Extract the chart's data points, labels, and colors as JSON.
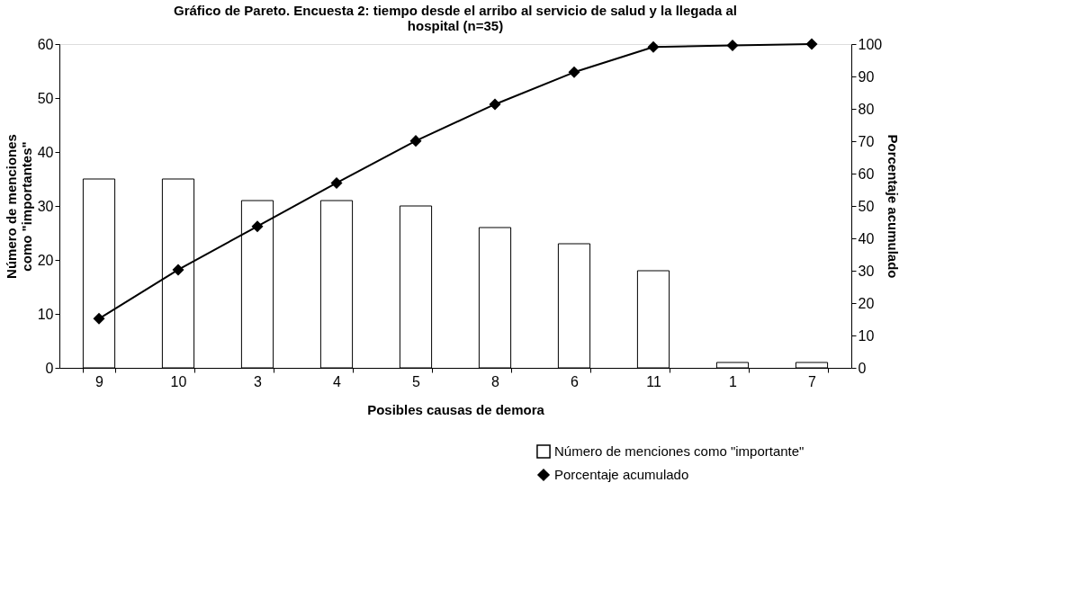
{
  "chart_data": {
    "type": "bar",
    "title": "Gráfico de Pareto. Encuesta 2: tiempo desde el arribo al servicio de salud y la llegada al hospital (n=35)",
    "xlabel": "Posibles causas de demora",
    "ylabel": "Número de menciones como \"importantes\"",
    "y2label": "Porcentaje acumulado",
    "categories": [
      "9",
      "10",
      "3",
      "4",
      "5",
      "8",
      "6",
      "11",
      "1",
      "7"
    ],
    "series": [
      {
        "name": "Número de menciones como \"importante\"",
        "color": "#ffffff",
        "values": [
          35,
          35,
          31,
          31,
          30,
          26,
          23,
          18,
          1,
          1
        ]
      },
      {
        "name": "Porcentaje acumulado",
        "type": "line",
        "axis": "y2",
        "color": "#000000",
        "marker": "diamond",
        "values": [
          15.2,
          30.3,
          43.7,
          57.1,
          70.1,
          81.4,
          91.3,
          99.1,
          99.6,
          100
        ]
      }
    ],
    "ylim": [
      0,
      60
    ],
    "yticks": [
      0,
      10,
      20,
      30,
      40,
      50,
      60
    ],
    "y2lim": [
      0,
      100
    ],
    "y2ticks": [
      0,
      10,
      20,
      30,
      40,
      50,
      60,
      70,
      80,
      90,
      100
    ],
    "legend": "bottom right",
    "grid": false
  }
}
